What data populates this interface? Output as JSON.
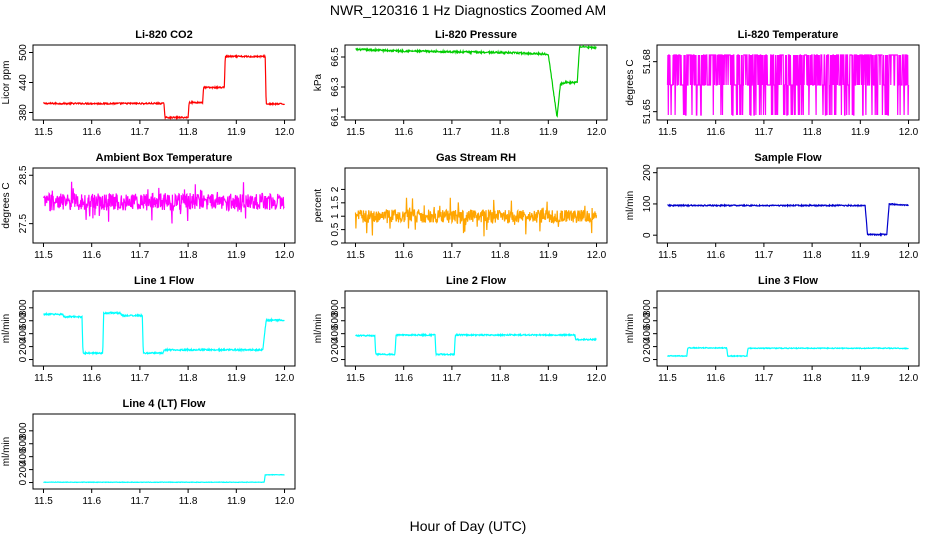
{
  "figure": {
    "title": "NWR_120316  1 Hz Diagnostics Zoomed AM",
    "xlabel": "Hour of Day (UTC)"
  },
  "chart_data": [
    {
      "id": "co2",
      "type": "line",
      "title": "Li-820 CO2",
      "ylabel": "Licor ppm",
      "color": "#ff0000",
      "xlim": [
        11.5,
        12.0
      ],
      "ylim": [
        365,
        515
      ],
      "xticks": [
        "11.5",
        "11.6",
        "11.7",
        "11.8",
        "11.9",
        "12.0"
      ],
      "yticks": [
        380,
        440,
        500
      ],
      "x": [
        11.5,
        11.75,
        11.752,
        11.8,
        11.802,
        11.83,
        11.832,
        11.875,
        11.877,
        11.96,
        11.962,
        12.0
      ],
      "y": [
        398,
        398,
        370,
        370,
        400,
        400,
        430,
        430,
        492,
        492,
        397,
        397
      ]
    },
    {
      "id": "pressure",
      "type": "line",
      "title": "Li-820 Pressure",
      "ylabel": "kPa",
      "color": "#00cc00",
      "xlim": [
        11.5,
        12.0
      ],
      "ylim": [
        66.08,
        66.58
      ],
      "xticks": [
        "11.5",
        "11.6",
        "11.7",
        "11.8",
        "11.9",
        "12.0"
      ],
      "yticks": [
        66.1,
        66.3,
        66.5
      ],
      "x": [
        11.5,
        11.6,
        11.7,
        11.8,
        11.9,
        11.918,
        11.925,
        11.935,
        11.96,
        11.965,
        12.0
      ],
      "y": [
        66.55,
        66.54,
        66.535,
        66.53,
        66.52,
        66.1,
        66.32,
        66.33,
        66.33,
        66.57,
        66.56
      ]
    },
    {
      "id": "licor_temp",
      "type": "line",
      "title": "Li-820 Temperature",
      "ylabel": "degrees C",
      "color": "#ff00ff",
      "xlim": [
        11.5,
        12.0
      ],
      "ylim": [
        51.645,
        51.69
      ],
      "xticks": [
        "11.5",
        "11.6",
        "11.7",
        "11.8",
        "11.9",
        "12.0"
      ],
      "yticks": [
        51.65,
        51.68
      ],
      "x": [
        11.5,
        11.75,
        12.0
      ],
      "y": [
        51.684,
        51.665,
        51.684
      ]
    },
    {
      "id": "ambient_temp",
      "type": "line",
      "title": "Ambient Box Temperature",
      "ylabel": "degrees C",
      "color": "#ff00ff",
      "xlim": [
        11.5,
        12.0
      ],
      "ylim": [
        27.1,
        28.65
      ],
      "xticks": [
        "11.5",
        "11.6",
        "11.7",
        "11.8",
        "11.9",
        "12.0"
      ],
      "yticks": [
        27.5,
        28.5
      ],
      "x": [
        11.5,
        11.75,
        12.0
      ],
      "y": [
        27.95,
        27.95,
        27.95
      ]
    },
    {
      "id": "rh",
      "type": "line",
      "title": "Gas Stream RH",
      "ylabel": "percent",
      "color": "#ffa500",
      "xlim": [
        11.5,
        12.0
      ],
      "ylim": [
        0.0,
        2.8
      ],
      "xticks": [
        "11.5",
        "11.6",
        "11.7",
        "11.8",
        "11.9",
        "12.0"
      ],
      "yticks": [
        0.0,
        0.5,
        1.0,
        1.5,
        2.0
      ],
      "x": [
        11.5,
        11.75,
        12.0
      ],
      "y": [
        1.0,
        1.0,
        1.0
      ]
    },
    {
      "id": "sample_flow",
      "type": "line",
      "title": "Sample Flow",
      "ylabel": "ml/min",
      "color": "#0000cc",
      "xlim": [
        11.5,
        12.0
      ],
      "ylim": [
        -25,
        215
      ],
      "xticks": [
        "11.5",
        "11.6",
        "11.7",
        "11.8",
        "11.9",
        "12.0"
      ],
      "yticks": [
        0,
        100,
        200
      ],
      "x": [
        11.5,
        11.91,
        11.915,
        11.955,
        11.96,
        12.0
      ],
      "y": [
        95,
        95,
        2,
        2,
        100,
        95
      ]
    },
    {
      "id": "line1",
      "type": "line",
      "title": "Line 1 Flow",
      "ylabel": "ml/min",
      "color": "#00ffff",
      "xlim": [
        11.5,
        12.0
      ],
      "ylim": [
        -100,
        1060
      ],
      "xticks": [
        "11.5",
        "11.6",
        "11.7",
        "11.8",
        "11.9",
        "12.0"
      ],
      "yticks": [
        0,
        200,
        400,
        600,
        800
      ],
      "x": [
        11.5,
        11.54,
        11.542,
        11.58,
        11.582,
        11.623,
        11.625,
        11.66,
        11.662,
        11.705,
        11.707,
        11.748,
        11.75,
        11.955,
        11.962,
        12.0
      ],
      "y": [
        700,
        700,
        660,
        660,
        100,
        100,
        720,
        720,
        680,
        680,
        100,
        100,
        150,
        150,
        610,
        610
      ]
    },
    {
      "id": "line2",
      "type": "line",
      "title": "Line 2 Flow",
      "ylabel": "ml/min",
      "color": "#00ffff",
      "xlim": [
        11.5,
        12.0
      ],
      "ylim": [
        -100,
        1060
      ],
      "xticks": [
        "11.5",
        "11.6",
        "11.7",
        "11.8",
        "11.9",
        "12.0"
      ],
      "yticks": [
        0,
        200,
        400,
        600,
        800
      ],
      "x": [
        11.5,
        11.54,
        11.542,
        11.582,
        11.584,
        11.665,
        11.667,
        11.705,
        11.707,
        11.955,
        11.957,
        12.0
      ],
      "y": [
        370,
        370,
        80,
        80,
        380,
        380,
        80,
        80,
        380,
        380,
        310,
        310
      ]
    },
    {
      "id": "line3",
      "type": "line",
      "title": "Line 3 Flow",
      "ylabel": "ml/min",
      "color": "#00ffff",
      "xlim": [
        11.5,
        12.0
      ],
      "ylim": [
        -100,
        1060
      ],
      "xticks": [
        "11.5",
        "11.6",
        "11.7",
        "11.8",
        "11.9",
        "12.0"
      ],
      "yticks": [
        0,
        200,
        400,
        600,
        800
      ],
      "x": [
        11.5,
        11.54,
        11.542,
        11.623,
        11.625,
        11.665,
        11.667,
        11.96,
        12.0
      ],
      "y": [
        55,
        55,
        180,
        180,
        55,
        55,
        175,
        175,
        170
      ]
    },
    {
      "id": "line4",
      "type": "line",
      "title": "Line 4 (LT) Flow",
      "ylabel": "ml/min",
      "color": "#00ffff",
      "xlim": [
        11.5,
        12.0
      ],
      "ylim": [
        -100,
        1060
      ],
      "xticks": [
        "11.5",
        "11.6",
        "11.7",
        "11.8",
        "11.9",
        "12.0"
      ],
      "yticks": [
        0,
        200,
        400,
        600,
        800
      ],
      "x": [
        11.5,
        11.958,
        11.96,
        12.0
      ],
      "y": [
        5,
        5,
        120,
        120
      ]
    }
  ]
}
